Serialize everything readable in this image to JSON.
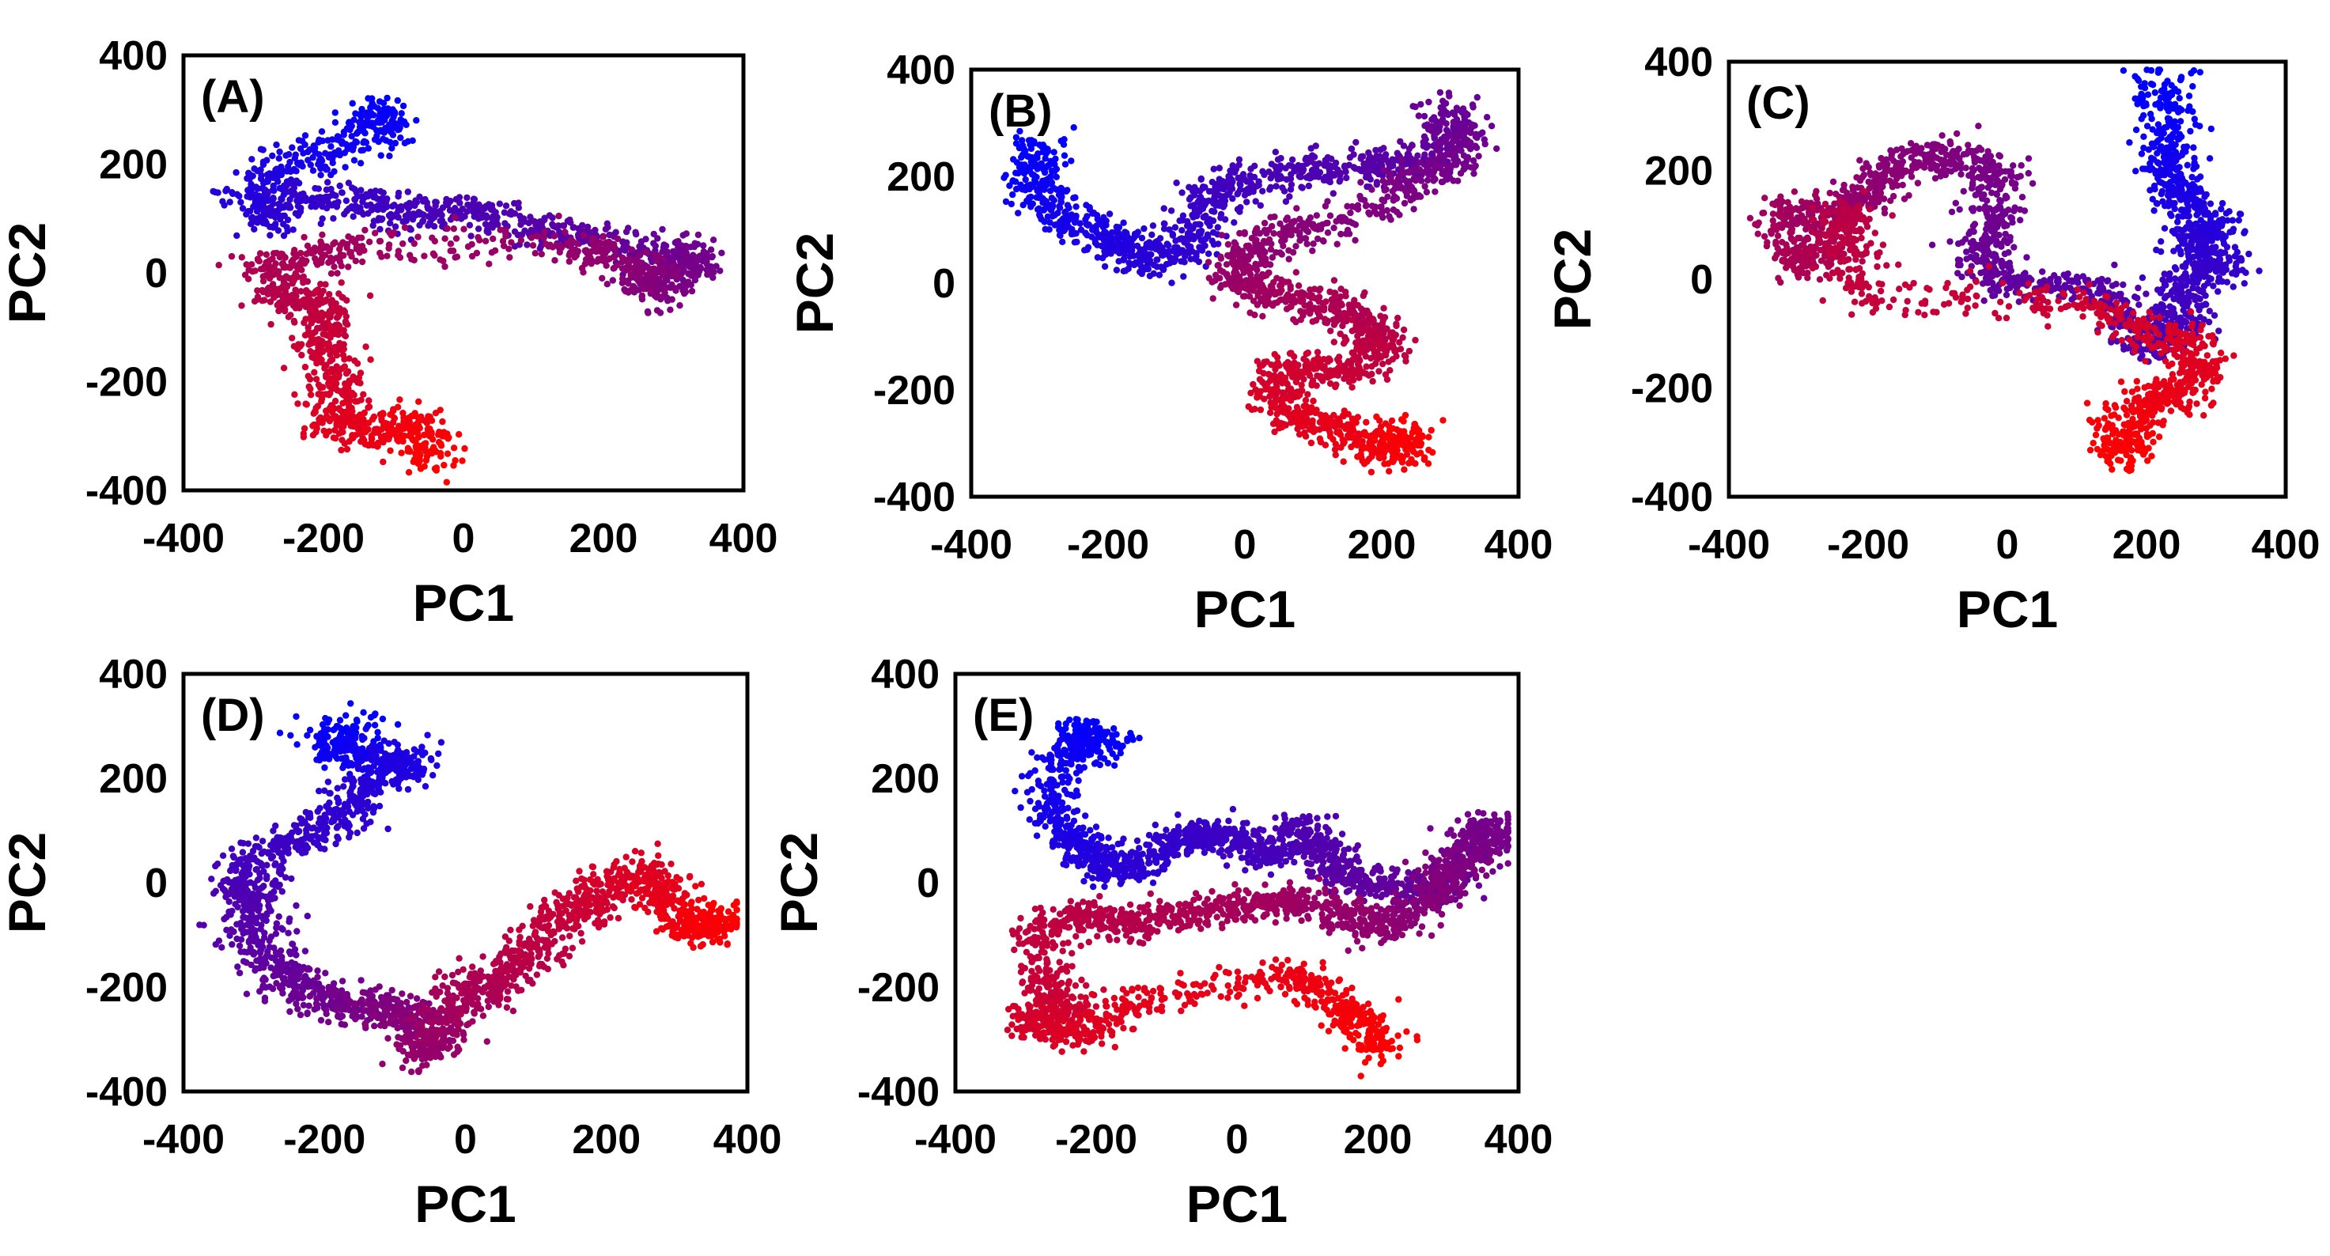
{
  "figure": {
    "description_free": true,
    "panels_count": 5
  },
  "chart_data": [
    {
      "type": "scatter",
      "panel_label": "(A)",
      "xlabel": "PC1",
      "ylabel": "PC2",
      "xlim": [
        -400,
        400
      ],
      "ylim": [
        -400,
        400
      ],
      "xticks": [
        "-400",
        "-200",
        "0",
        "200",
        "400"
      ],
      "yticks": [
        "400",
        "200",
        "0",
        "-200",
        "-400"
      ],
      "color_start": "#0000ff",
      "color_end": "#ff0000",
      "points_per_segment": 90,
      "path": [
        [
          -130,
          300
        ],
        [
          -110,
          260
        ],
        [
          -220,
          220
        ],
        [
          -300,
          160
        ],
        [
          -280,
          100
        ],
        [
          -200,
          150
        ],
        [
          -100,
          110
        ],
        [
          0,
          120
        ],
        [
          100,
          80
        ],
        [
          200,
          60
        ],
        [
          300,
          20
        ],
        [
          340,
          30
        ],
        [
          270,
          -40
        ],
        [
          260,
          10
        ],
        [
          150,
          50
        ],
        [
          -150,
          50
        ],
        [
          -270,
          20
        ],
        [
          -260,
          -50
        ],
        [
          -190,
          -60
        ],
        [
          -200,
          -130
        ],
        [
          -180,
          -210
        ],
        [
          -190,
          -280
        ],
        [
          -120,
          -290
        ],
        [
          -60,
          -280
        ],
        [
          -40,
          -350
        ]
      ],
      "spread": [
        22,
        18
      ]
    },
    {
      "type": "scatter",
      "panel_label": "(B)",
      "xlabel": "PC1",
      "ylabel": "PC2",
      "xlim": [
        -400,
        400
      ],
      "ylim": [
        -400,
        400
      ],
      "xticks": [
        "-400",
        "-200",
        "0",
        "200",
        "400"
      ],
      "yticks": [
        "400",
        "200",
        "0",
        "-200",
        "-400"
      ],
      "color_start": "#0000ff",
      "color_end": "#ff0000",
      "points_per_segment": 90,
      "path": [
        [
          -300,
          270
        ],
        [
          -310,
          190
        ],
        [
          -270,
          130
        ],
        [
          -200,
          80
        ],
        [
          -150,
          50
        ],
        [
          -80,
          60
        ],
        [
          -60,
          160
        ],
        [
          -10,
          180
        ],
        [
          80,
          210
        ],
        [
          180,
          220
        ],
        [
          260,
          230
        ],
        [
          300,
          330
        ],
        [
          320,
          240
        ],
        [
          240,
          180
        ],
        [
          120,
          110
        ],
        [
          20,
          80
        ],
        [
          -20,
          10
        ],
        [
          40,
          -20
        ],
        [
          120,
          -40
        ],
        [
          180,
          -80
        ],
        [
          200,
          -120
        ],
        [
          140,
          -170
        ],
        [
          60,
          -160
        ],
        [
          40,
          -230
        ],
        [
          100,
          -260
        ],
        [
          170,
          -290
        ],
        [
          220,
          -320
        ],
        [
          240,
          -280
        ]
      ],
      "spread": [
        22,
        18
      ]
    },
    {
      "type": "scatter",
      "panel_label": "(C)",
      "xlabel": "PC1",
      "ylabel": "PC2",
      "xlim": [
        -400,
        400
      ],
      "ylim": [
        -400,
        400
      ],
      "xticks": [
        "-400",
        "-200",
        "0",
        "200",
        "400"
      ],
      "yticks": [
        "400",
        "200",
        "0",
        "-200",
        "-400"
      ],
      "color_start": "#0000ff",
      "color_end": "#ff0000",
      "points_per_segment": 90,
      "path": [
        [
          220,
          370
        ],
        [
          230,
          290
        ],
        [
          230,
          210
        ],
        [
          240,
          150
        ],
        [
          300,
          100
        ],
        [
          260,
          60
        ],
        [
          310,
          20
        ],
        [
          240,
          -20
        ],
        [
          250,
          -80
        ],
        [
          200,
          -120
        ],
        [
          140,
          -20
        ],
        [
          20,
          -10
        ],
        [
          -40,
          20
        ],
        [
          -20,
          110
        ],
        [
          -10,
          190
        ],
        [
          -80,
          230
        ],
        [
          -160,
          210
        ],
        [
          -200,
          150
        ],
        [
          -260,
          120
        ],
        [
          -330,
          120
        ],
        [
          -300,
          30
        ],
        [
          -250,
          50
        ],
        [
          -230,
          130
        ],
        [
          -220,
          -30
        ],
        [
          80,
          -30
        ],
        [
          220,
          -100
        ],
        [
          280,
          -140
        ],
        [
          260,
          -200
        ],
        [
          200,
          -230
        ],
        [
          160,
          -280
        ],
        [
          170,
          -330
        ]
      ],
      "spread": [
        22,
        18
      ]
    },
    {
      "type": "scatter",
      "panel_label": "(D)",
      "xlabel": "PC1",
      "ylabel": "PC2",
      "xlim": [
        -400,
        400
      ],
      "ylim": [
        -400,
        400
      ],
      "xticks": [
        "-400",
        "-200",
        "0",
        "200",
        "400"
      ],
      "yticks": [
        "400",
        "200",
        "0",
        "-200",
        "-400"
      ],
      "color_start": "#0000ff",
      "color_end": "#ff0000",
      "points_per_segment": 90,
      "path": [
        [
          -140,
          300
        ],
        [
          -200,
          270
        ],
        [
          -120,
          230
        ],
        [
          -70,
          230
        ],
        [
          -150,
          180
        ],
        [
          -190,
          110
        ],
        [
          -260,
          70
        ],
        [
          -320,
          20
        ],
        [
          -300,
          -40
        ],
        [
          -300,
          -110
        ],
        [
          -260,
          -180
        ],
        [
          -220,
          -210
        ],
        [
          -160,
          -240
        ],
        [
          -110,
          -240
        ],
        [
          -70,
          -260
        ],
        [
          -60,
          -330
        ],
        [
          -30,
          -280
        ],
        [
          0,
          -210
        ],
        [
          50,
          -180
        ],
        [
          100,
          -130
        ],
        [
          130,
          -60
        ],
        [
          180,
          -40
        ],
        [
          230,
          20
        ],
        [
          270,
          0
        ],
        [
          300,
          -60
        ],
        [
          340,
          -100
        ],
        [
          370,
          -60
        ]
      ],
      "spread": [
        24,
        18
      ]
    },
    {
      "type": "scatter",
      "panel_label": "(E)",
      "xlabel": "PC1",
      "ylabel": "PC2",
      "xlim": [
        -400,
        400
      ],
      "ylim": [
        -400,
        400
      ],
      "xticks": [
        "-400",
        "-200",
        "0",
        "200",
        "400"
      ],
      "yticks": [
        "400",
        "200",
        "0",
        "-200",
        "-400"
      ],
      "color_start": "#0000ff",
      "color_end": "#ff0000",
      "points_per_segment": 90,
      "path": [
        [
          -230,
          290
        ],
        [
          -180,
          270
        ],
        [
          -250,
          250
        ],
        [
          -270,
          140
        ],
        [
          -230,
          80
        ],
        [
          -200,
          40
        ],
        [
          -150,
          20
        ],
        [
          -100,
          70
        ],
        [
          -50,
          100
        ],
        [
          0,
          80
        ],
        [
          50,
          50
        ],
        [
          90,
          110
        ],
        [
          120,
          60
        ],
        [
          150,
          10
        ],
        [
          220,
          0
        ],
        [
          280,
          -30
        ],
        [
          340,
          60
        ],
        [
          360,
          110
        ],
        [
          330,
          50
        ],
        [
          290,
          0
        ],
        [
          240,
          -70
        ],
        [
          180,
          -90
        ],
        [
          130,
          -40
        ],
        [
          60,
          -30
        ],
        [
          0,
          -50
        ],
        [
          -80,
          -60
        ],
        [
          -150,
          -80
        ],
        [
          -220,
          -60
        ],
        [
          -280,
          -100
        ],
        [
          -270,
          -200
        ],
        [
          -240,
          -240
        ],
        [
          -300,
          -270
        ],
        [
          -220,
          -290
        ],
        [
          -150,
          -230
        ],
        [
          70,
          -180
        ],
        [
          130,
          -220
        ],
        [
          180,
          -270
        ],
        [
          210,
          -330
        ]
      ],
      "spread": [
        20,
        16
      ]
    }
  ]
}
